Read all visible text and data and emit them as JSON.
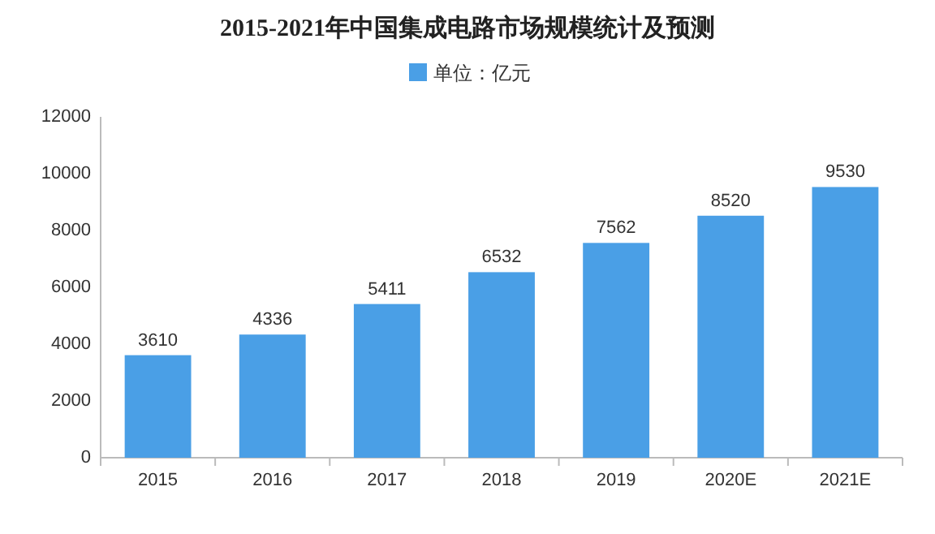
{
  "chart_data": {
    "type": "bar",
    "title": "2015-2021年中国集成电路市场规模统计及预测",
    "categories": [
      "2015",
      "2016",
      "2017",
      "2018",
      "2019",
      "2020E",
      "2021E"
    ],
    "series": [
      {
        "name": "单位：亿元",
        "color": "#4a9fe6",
        "values": [
          3610,
          4336,
          5411,
          6532,
          7562,
          8520,
          9530
        ]
      }
    ],
    "ylim": [
      0,
      12000
    ],
    "yticks": [
      0,
      2000,
      4000,
      6000,
      8000,
      10000,
      12000
    ],
    "data_labels": true,
    "legend": "top"
  }
}
